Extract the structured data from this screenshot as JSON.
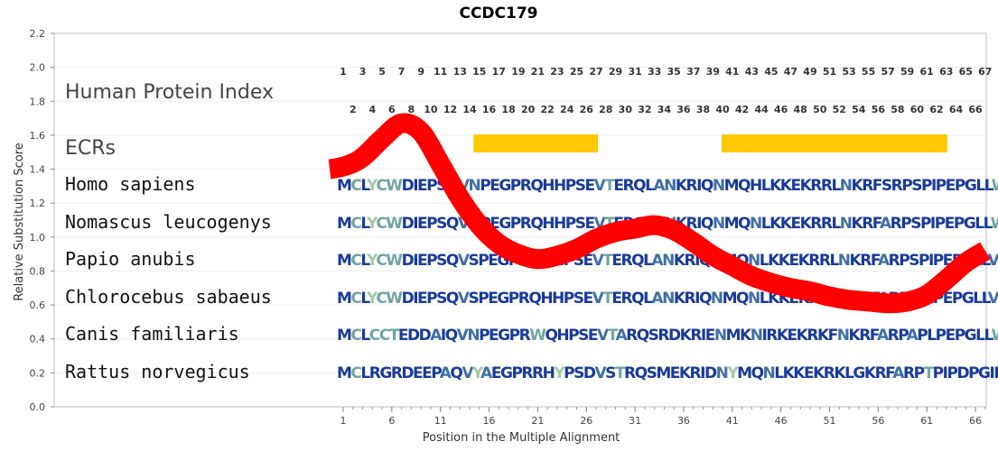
{
  "chart_data": {
    "type": "line",
    "title": "CCDC179",
    "xlabel": "Position in the Multiple Alignment",
    "ylabel": "Relative Substitution Score",
    "ylim": [
      0,
      2.2
    ],
    "xlim": [
      1,
      67
    ],
    "y_ticks": [
      "0.0",
      "0.2",
      "0.4",
      "0.6",
      "0.8",
      "1.0",
      "1.2",
      "1.4",
      "1.6",
      "1.8",
      "2.0",
      "2.2"
    ],
    "x_ticks": [
      "1",
      "6",
      "11",
      "16",
      "21",
      "26",
      "31",
      "36",
      "41",
      "46",
      "51",
      "56",
      "61",
      "66"
    ],
    "grid": true,
    "human_protein_index_label": "Human Protein Index",
    "human_protein_index_odd": [
      "1",
      "3",
      "5",
      "7",
      "9",
      "11",
      "13",
      "15",
      "17",
      "19",
      "21",
      "23",
      "25",
      "27",
      "29",
      "31",
      "33",
      "35",
      "37",
      "39",
      "41",
      "43",
      "45",
      "47",
      "49",
      "51",
      "53",
      "55",
      "57",
      "59",
      "61",
      "63",
      "65",
      "67"
    ],
    "human_protein_index_even": [
      "2",
      "4",
      "6",
      "8",
      "10",
      "12",
      "14",
      "16",
      "18",
      "20",
      "22",
      "24",
      "26",
      "28",
      "30",
      "32",
      "34",
      "36",
      "38",
      "40",
      "42",
      "44",
      "46",
      "48",
      "50",
      "52",
      "54",
      "56",
      "58",
      "60",
      "62",
      "64",
      "66"
    ],
    "ecr_label": "ECRs",
    "ecrs": [
      {
        "start": 14.4,
        "end": 27.2
      },
      {
        "start": 39.9,
        "end": 63.1
      }
    ],
    "ecr_color": "#ffc800",
    "curve_color": "#ff0000",
    "curve": {
      "x": [
        1,
        3,
        5,
        7,
        9,
        11,
        13,
        15,
        17,
        19,
        21,
        23,
        25,
        27,
        29,
        31,
        33,
        35,
        37,
        39,
        41,
        43,
        45,
        47,
        49,
        51,
        53,
        55,
        57,
        59,
        61,
        63,
        65,
        67
      ],
      "y": [
        1.4,
        1.47,
        1.58,
        1.67,
        1.62,
        1.43,
        1.23,
        1.07,
        0.96,
        0.9,
        0.87,
        0.89,
        0.93,
        0.99,
        1.03,
        1.05,
        1.07,
        1.04,
        0.97,
        0.89,
        0.83,
        0.77,
        0.73,
        0.7,
        0.68,
        0.65,
        0.63,
        0.62,
        0.61,
        0.62,
        0.66,
        0.75,
        0.85,
        0.92
      ]
    },
    "sequences": [
      {
        "species": "Homo sapiens",
        "residues": "MCLYCWDIEPSQVNPEGPRQHHPSEVTERQLANKRIQNMQHLKKEKRRLNKRFSRPSPIPEPGLLWS"
      },
      {
        "species": "Nomascus leucogenys",
        "residues": "MCLYCWDIEPSQVNPEGPRQHHPSEVTERQLANKRIQNMQNLKKEKRRLNKRFARPSPIPEPGLLWS"
      },
      {
        "species": "Papio anubis",
        "residues": "MCLYCWDIEPSQVSPEGPRQHHPSEVTERQLANKRIQNMQNLKKEKRRLNKRFARPSPIPEPGLLVS"
      },
      {
        "species": "Chlorocebus sabaeus",
        "residues": "MCLYCWDIEPSQVSPEGPRQHHPSEVTERQLANKRIQNMQNLKKEKRRLNKRFARPSPIPEPGLLVS"
      },
      {
        "species": "Canis familiaris",
        "residues": "MCLCCTEDDAIQVNPEGPRWQHPSEVTARQSRDKRIENMKNIRKEKRKFNKRFARPAPLPEPGLLWT"
      },
      {
        "species": "Rattus norvegicus",
        "residues": "MCLRGRDEEPAQVYAEGPRRHYPSDVSTRQSMEKRIDNYMQNLKKEKRKLGKRFARPTPIPDPGILWP"
      }
    ],
    "residue_colors": {
      "dark": "#1a3a9a",
      "mid": "#3f6fa6",
      "light": "#6fa5a0",
      "pale": "#a6c8a6"
    }
  }
}
